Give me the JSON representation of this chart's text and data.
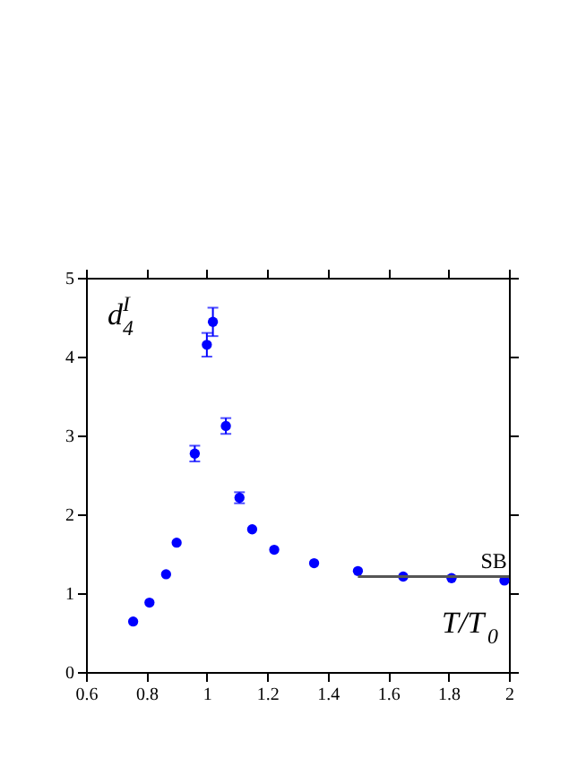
{
  "chart_data": {
    "type": "scatter",
    "xlabel": "T/T$_{0}$",
    "ylabel": "d$_{4}$$^{I}$",
    "xlim": [
      0.6,
      2
    ],
    "ylim": [
      0,
      5
    ],
    "xticks": [
      0.6,
      0.8,
      1,
      1.2,
      1.4,
      1.6,
      1.8,
      2
    ],
    "yticks": [
      0,
      1,
      2,
      3,
      4,
      5
    ],
    "marker": "circle",
    "grid": false,
    "series": [
      {
        "color": "#0000ff",
        "x": [
          0.756,
          0.81,
          0.865,
          0.9,
          0.96,
          1.0,
          1.02,
          1.063,
          1.108,
          1.15,
          1.223,
          1.355,
          1.5,
          1.65,
          1.81,
          1.985
        ],
        "values": [
          0.64,
          0.88,
          1.24,
          1.64,
          2.77,
          4.15,
          4.44,
          3.12,
          2.21,
          1.81,
          1.55,
          1.38,
          1.28,
          1.21,
          1.19,
          1.16
        ],
        "errors": [
          null,
          null,
          null,
          null,
          0.1,
          0.15,
          0.18,
          0.1,
          0.07,
          null,
          null,
          null,
          null,
          null,
          null,
          null
        ]
      },
      {
        "type": "line",
        "color": "#555555",
        "x": [
          1.5,
          2.0
        ],
        "values": [
          1.21,
          1.21
        ],
        "marker": "none"
      }
    ],
    "annotations": [
      {
        "text": "SB",
        "x": 1.95,
        "y": 1.21
      }
    ]
  }
}
